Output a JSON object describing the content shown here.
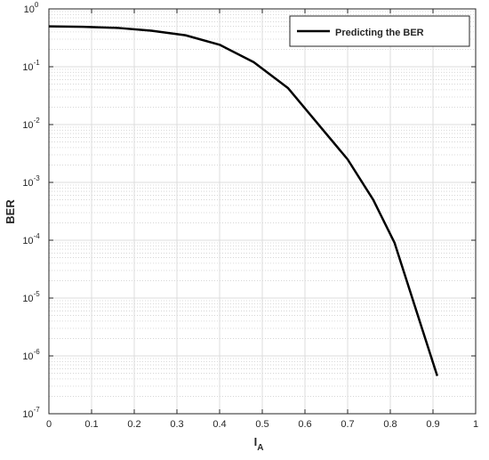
{
  "chart_data": {
    "type": "line",
    "ylabel": "BER",
    "xlabel": "I",
    "xlabel_sub": "A",
    "x": [
      0,
      0.08,
      0.16,
      0.24,
      0.32,
      0.4,
      0.48,
      0.56,
      0.7,
      0.76,
      0.81,
      0.91
    ],
    "series": [
      {
        "name": "Predicting the BER",
        "color": "#000000",
        "values": [
          0.5,
          0.49,
          0.47,
          0.42,
          0.35,
          0.24,
          0.12,
          0.043,
          0.0025,
          0.0005,
          9e-05,
          4.5e-07
        ]
      }
    ],
    "xlim": [
      0,
      1
    ],
    "xticks": [
      0,
      0.1,
      0.2,
      0.3,
      0.4,
      0.5,
      0.6,
      0.7,
      0.8,
      0.9,
      1
    ],
    "ylim": [
      1e-07,
      1
    ],
    "log_y": true,
    "yticks": [
      {
        "value": 1e-07,
        "label": "10",
        "sup": "-7"
      },
      {
        "value": 1e-06,
        "label": "10",
        "sup": "-6"
      },
      {
        "value": 1e-05,
        "label": "10",
        "sup": "-5"
      },
      {
        "value": 0.0001,
        "label": "10",
        "sup": "-4"
      },
      {
        "value": 0.001,
        "label": "10",
        "sup": "-3"
      },
      {
        "value": 0.01,
        "label": "10",
        "sup": "-2"
      },
      {
        "value": 0.1,
        "label": "10",
        "sup": "-1"
      },
      {
        "value": 1,
        "label": "10",
        "sup": "0"
      }
    ],
    "grid": true,
    "minor_grid": true,
    "legend_loc": "northeast"
  }
}
